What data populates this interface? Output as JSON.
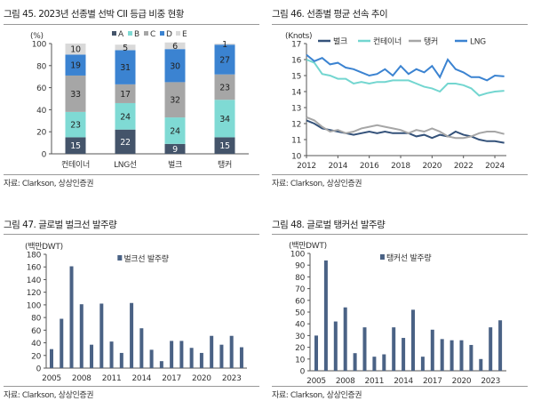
{
  "colors": {
    "A": "#44546a",
    "B": "#7fdad4",
    "C": "#a6a6a6",
    "D": "#3b83d1",
    "E": "#d9d9d9",
    "bulk": "#34527a",
    "container": "#73d6d0",
    "tanker": "#a6a6a6",
    "lng": "#3b83d1",
    "bar": "#4a6285"
  },
  "chart_data": [
    {
      "type": "bar",
      "stacked": true,
      "title": "그림 45. 2023년 선종별 선박 CII 등급 비중 현황",
      "ylabel": "(%)",
      "ylim": [
        0,
        100
      ],
      "yticks": [
        0,
        20,
        40,
        60,
        80,
        100
      ],
      "categories": [
        "컨테이너",
        "LNG선",
        "벌크",
        "탱커"
      ],
      "legend": "top",
      "series": [
        {
          "name": "A",
          "values": [
            15,
            22,
            9,
            15
          ]
        },
        {
          "name": "B",
          "values": [
            23,
            24,
            24,
            34
          ]
        },
        {
          "name": "C",
          "values": [
            33,
            17,
            32,
            23
          ]
        },
        {
          "name": "D",
          "values": [
            19,
            31,
            30,
            27
          ]
        },
        {
          "name": "E",
          "values": [
            10,
            5,
            6,
            1
          ]
        }
      ],
      "source": "자료: Clarkson, 상상인증권"
    },
    {
      "type": "line",
      "title": "그림 46. 선종별 평균 선속 추이",
      "ylabel": "(Knots)",
      "ylim": [
        10,
        17
      ],
      "yticks": [
        10,
        11,
        12,
        13,
        14,
        15,
        16,
        17
      ],
      "xticks": [
        2012,
        2014,
        2016,
        2018,
        2020,
        2022,
        2024
      ],
      "legend": "top",
      "x": [
        2012,
        2012.5,
        2013,
        2013.5,
        2014,
        2014.5,
        2015,
        2015.5,
        2016,
        2016.5,
        2017,
        2017.5,
        2018,
        2018.5,
        2019,
        2019.5,
        2020,
        2020.5,
        2021,
        2021.5,
        2022,
        2022.5,
        2023,
        2023.5,
        2024,
        2024.6
      ],
      "series": [
        {
          "name": "벌크",
          "values": [
            12.2,
            12.0,
            11.7,
            11.6,
            11.5,
            11.4,
            11.3,
            11.4,
            11.5,
            11.4,
            11.5,
            11.4,
            11.4,
            11.4,
            11.2,
            11.3,
            11.1,
            11.3,
            11.2,
            11.5,
            11.3,
            11.2,
            11.0,
            10.9,
            10.9,
            10.8
          ]
        },
        {
          "name": "컨테이너",
          "values": [
            16.0,
            15.8,
            15.1,
            15.0,
            14.8,
            14.8,
            14.5,
            14.6,
            14.5,
            14.6,
            14.6,
            14.7,
            14.7,
            14.7,
            14.5,
            14.3,
            14.2,
            14.0,
            14.5,
            14.5,
            14.4,
            14.2,
            13.75,
            13.9,
            14.0,
            14.05
          ]
        },
        {
          "name": "탱커",
          "values": [
            12.4,
            12.2,
            11.8,
            11.5,
            11.6,
            11.4,
            11.5,
            11.7,
            11.8,
            11.9,
            11.8,
            11.7,
            11.6,
            11.4,
            11.6,
            11.5,
            11.7,
            11.5,
            11.2,
            11.1,
            11.1,
            11.2,
            11.4,
            11.5,
            11.5,
            11.35
          ]
        },
        {
          "name": "LNG",
          "values": [
            16.3,
            15.9,
            16.1,
            15.7,
            15.8,
            15.5,
            15.4,
            15.2,
            15.0,
            15.1,
            15.4,
            15.0,
            15.6,
            15.1,
            15.4,
            15.2,
            15.6,
            14.9,
            16.0,
            15.4,
            15.2,
            14.9,
            14.9,
            14.7,
            15.0,
            14.95
          ]
        }
      ],
      "source": "자료: Clarkson, 상상인증권"
    },
    {
      "type": "bar",
      "title": "그림 47. 글로벌 벌크선 발주량",
      "ylabel": "(백만DWT)",
      "ylim": [
        0,
        180
      ],
      "yticks": [
        0,
        20,
        40,
        60,
        80,
        100,
        120,
        140,
        160,
        180
      ],
      "xticks": [
        2005,
        2008,
        2011,
        2014,
        2017,
        2020,
        2023
      ],
      "legend": "top",
      "categories": [
        2005,
        2006,
        2007,
        2008,
        2009,
        2010,
        2011,
        2012,
        2013,
        2014,
        2015,
        2016,
        2017,
        2018,
        2019,
        2020,
        2021,
        2022,
        2023,
        2024
      ],
      "series": [
        {
          "name": "벌크선 발주량",
          "values": [
            30,
            78,
            161,
            101,
            37,
            102,
            42,
            24,
            103,
            63,
            29,
            11,
            43,
            43,
            32,
            24,
            51,
            37,
            51,
            33
          ]
        }
      ],
      "source": "자료: Clarkson, 상상인증권"
    },
    {
      "type": "bar",
      "title": "그림 48. 글로벌 탱커선 발주량",
      "ylabel": "(백만DWT)",
      "ylim": [
        0,
        100
      ],
      "yticks": [
        0,
        10,
        20,
        30,
        40,
        50,
        60,
        70,
        80,
        90,
        100
      ],
      "xticks": [
        2005,
        2008,
        2011,
        2014,
        2017,
        2020,
        2023
      ],
      "legend": "top",
      "categories": [
        2005,
        2006,
        2007,
        2008,
        2009,
        2010,
        2011,
        2012,
        2013,
        2014,
        2015,
        2016,
        2017,
        2018,
        2019,
        2020,
        2021,
        2022,
        2023,
        2024
      ],
      "series": [
        {
          "name": "탱커선 발주량",
          "values": [
            30,
            94,
            42,
            54,
            15,
            37,
            12,
            14,
            37,
            28,
            52,
            12,
            35,
            27,
            26,
            26,
            22,
            10,
            37,
            43
          ]
        }
      ],
      "source": "자료: Clarkson, 상상인증권"
    }
  ]
}
